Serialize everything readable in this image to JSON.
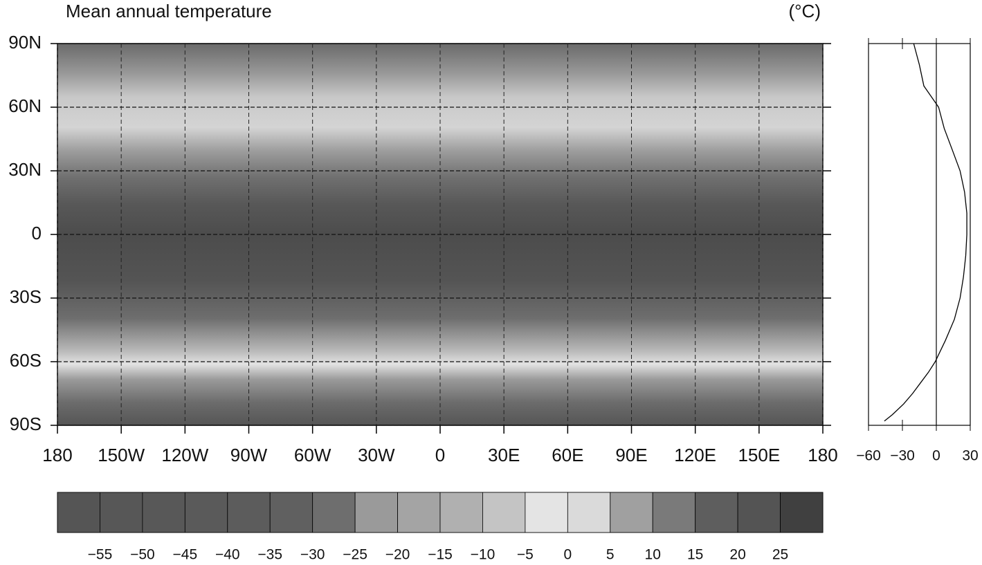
{
  "title": "Mean annual temperature",
  "unit": "(°C)",
  "map": {
    "lonlim": [
      -180,
      180
    ],
    "latlim": [
      -90,
      90
    ],
    "lonticks": [
      {
        "value": -180,
        "label": "180"
      },
      {
        "value": -150,
        "label": "150W"
      },
      {
        "value": -120,
        "label": "120W"
      },
      {
        "value": -90,
        "label": "90W"
      },
      {
        "value": -60,
        "label": "60W"
      },
      {
        "value": -30,
        "label": "30W"
      },
      0,
      {
        "value": 30,
        "label": "30E"
      },
      {
        "value": 60,
        "label": "60E"
      },
      {
        "value": 90,
        "label": "90E"
      },
      {
        "value": 120,
        "label": "120E"
      },
      {
        "value": 150,
        "label": "150E"
      },
      {
        "value": 180,
        "label": "180"
      }
    ],
    "latticks": [
      {
        "value": 90,
        "label": "90N"
      },
      {
        "value": 60,
        "label": "60N"
      },
      {
        "value": 30,
        "label": "30N"
      },
      0,
      {
        "value": -30,
        "label": "30S"
      },
      {
        "value": -60,
        "label": "60S"
      },
      {
        "value": -90,
        "label": "90S"
      }
    ]
  },
  "chart_data": {
    "type": "line",
    "color": "#000000",
    "xlim": [
      -60,
      30
    ],
    "ylim": [
      -90,
      90
    ],
    "xticks": [
      {
        "value": -60,
        "label": "−60"
      },
      {
        "value": -30,
        "label": "−30"
      },
      0,
      30
    ],
    "y": [
      90,
      80,
      70,
      60,
      50,
      40,
      30,
      20,
      10,
      0,
      -10,
      -20,
      -30,
      -40,
      -50,
      -60,
      -65,
      -70,
      -75,
      -80,
      -85,
      -88
    ],
    "values": [
      -20,
      -15,
      -11,
      2,
      7,
      14,
      21,
      25,
      27,
      27,
      26,
      24,
      21,
      16,
      8,
      -1,
      -7,
      -14,
      -21,
      -29,
      -39,
      -46
    ]
  },
  "colorbar": {
    "colors": [
      "#555555",
      "#575757",
      "#585858",
      "#5a5a5a",
      "#5c5c5c",
      "#606060",
      "#6e6e6e",
      "#9a9a9a",
      "#a4a4a4",
      "#b0b0b0",
      "#c4c4c4",
      "#e4e4e4",
      "#dadada",
      "#a0a0a0",
      "#7a7a7a",
      "#5e5e5e",
      "#545454",
      "#404040"
    ],
    "ticks": [
      {
        "value": -55,
        "label": "−55"
      },
      {
        "value": -50,
        "label": "−50"
      },
      {
        "value": -45,
        "label": "−45"
      },
      {
        "value": -40,
        "label": "−40"
      },
      {
        "value": -35,
        "label": "−35"
      },
      {
        "value": -30,
        "label": "−30"
      },
      {
        "value": -25,
        "label": "−25"
      },
      {
        "value": -20,
        "label": "−20"
      },
      {
        "value": -15,
        "label": "−15"
      },
      {
        "value": -10,
        "label": "−10"
      },
      {
        "value": -5,
        "label": "−5"
      },
      0,
      5,
      10,
      15,
      20,
      25
    ]
  }
}
